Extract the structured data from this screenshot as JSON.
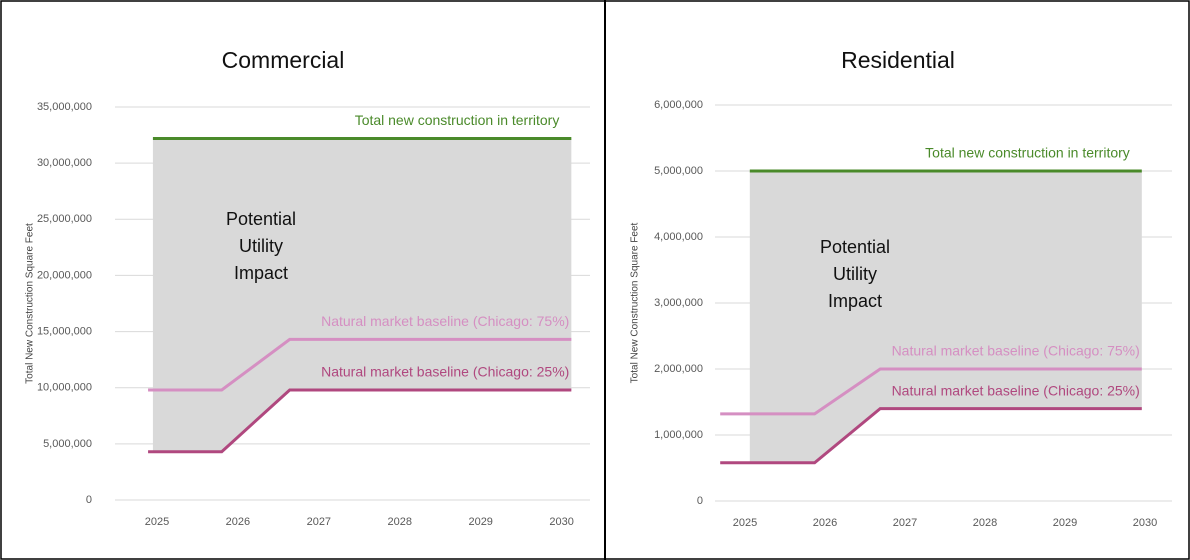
{
  "chart_data": [
    {
      "type": "line",
      "title": "Commercial",
      "ylabel": "Total New Construction Square Feet",
      "xlim": [
        2024.6,
        2030.4
      ],
      "xticks": [
        2025,
        2026,
        2027,
        2028,
        2029,
        2030
      ],
      "ylim": [
        0,
        35000000
      ],
      "yticks": [
        {
          "value": 0,
          "label": "0"
        },
        {
          "value": 5000000,
          "label": "5,000,000"
        },
        {
          "value": 10000000,
          "label": "10,000,000"
        },
        {
          "value": 15000000,
          "label": "15,000,000"
        },
        {
          "value": 20000000,
          "label": "20,000,000"
        },
        {
          "value": 25000000,
          "label": "25,000,000"
        },
        {
          "value": 30000000,
          "label": "30,000,000"
        },
        {
          "value": 35000000,
          "label": "35,000,000"
        }
      ],
      "grid": true,
      "area_color": "#d9d9d9",
      "annotation": [
        "Potential",
        "Utility",
        "Impact"
      ],
      "series": [
        {
          "name": "Total new construction in territory",
          "color": "#4a8a2a",
          "x": [
            2024.95,
            2030.12
          ],
          "values": [
            32200000,
            32200000
          ]
        },
        {
          "name": "Natural market baseline (Chicago: 75%)",
          "color": "#d58fc2",
          "x": [
            2024.89,
            2025.8,
            2026.64,
            2030.12
          ],
          "values": [
            9800000,
            9800000,
            14300000,
            14300000
          ]
        },
        {
          "name": "Natural market baseline (Chicago: 25%)",
          "color": "#b0487f",
          "x": [
            2024.89,
            2025.8,
            2026.64,
            2030.12
          ],
          "values": [
            4300000,
            4300000,
            9800000,
            9800000
          ]
        }
      ]
    },
    {
      "type": "line",
      "title": "Residential",
      "ylabel": "Total New Construction Square Feet",
      "xlim": [
        2024.6,
        2030.4
      ],
      "xticks": [
        2025,
        2026,
        2027,
        2028,
        2029,
        2030
      ],
      "ylim": [
        0,
        6000000
      ],
      "yticks": [
        {
          "value": 0,
          "label": "0"
        },
        {
          "value": 1000000,
          "label": "1,000,000"
        },
        {
          "value": 2000000,
          "label": "2,000,000"
        },
        {
          "value": 3000000,
          "label": "3,000,000"
        },
        {
          "value": 4000000,
          "label": "4,000,000"
        },
        {
          "value": 5000000,
          "label": "5,000,000"
        },
        {
          "value": 6000000,
          "label": "6,000,000"
        }
      ],
      "grid": true,
      "area_color": "#d9d9d9",
      "annotation": [
        "Potential",
        "Utility",
        "Impact"
      ],
      "series": [
        {
          "name": "Total new construction in territory",
          "color": "#4a8a2a",
          "x": [
            2025.06,
            2029.96
          ],
          "values": [
            5000000,
            5000000
          ]
        },
        {
          "name": "Natural market baseline (Chicago: 75%)",
          "color": "#d58fc2",
          "x": [
            2024.69,
            2025.87,
            2026.69,
            2029.96
          ],
          "values": [
            1320000,
            1320000,
            2000000,
            2000000
          ]
        },
        {
          "name": "Natural market baseline (Chicago: 25%)",
          "color": "#b0487f",
          "x": [
            2024.69,
            2025.87,
            2026.69,
            2029.96
          ],
          "values": [
            580000,
            580000,
            1400000,
            1400000
          ]
        }
      ]
    }
  ]
}
